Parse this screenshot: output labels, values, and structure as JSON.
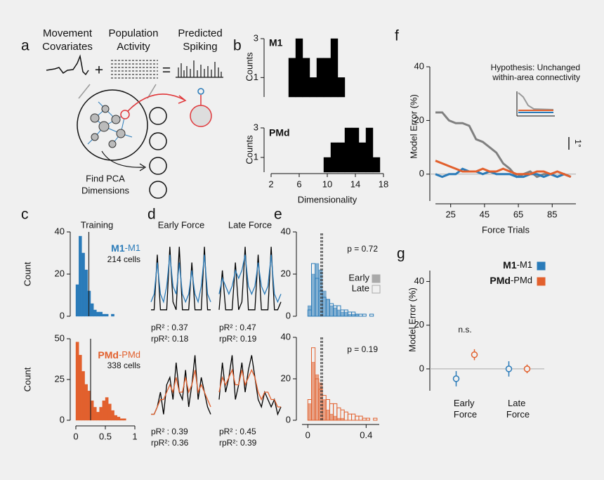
{
  "figure": {
    "letters": [
      "a",
      "b",
      "c",
      "d",
      "e",
      "f",
      "g"
    ],
    "a": {
      "headers": [
        [
          "Movement",
          "Covariates"
        ],
        [
          "Population",
          "Activity"
        ],
        [
          "Predicted",
          "Spiking"
        ]
      ],
      "plus": "+",
      "equals": "=",
      "caption": [
        "Find PCA",
        "Dimensions"
      ]
    },
    "f_inset": [
      "Hypothesis: Unchanged",
      "within-area connectivity"
    ],
    "f_scale": "1°"
  },
  "chart_data": [
    {
      "type": "histogram",
      "title": "M1",
      "ylabel": "Counts",
      "bins": [
        4.5,
        5.5,
        6.5,
        7.5,
        8.5,
        9.5,
        10.5,
        11.5,
        12.5
      ],
      "values": [
        2,
        3,
        2,
        1,
        2,
        2,
        3,
        1
      ],
      "color": "#000000",
      "xlim": [
        2,
        18
      ],
      "ylim": [
        0,
        3
      ],
      "yticks": [
        1,
        3
      ]
    },
    {
      "type": "histogram",
      "title": "PMd",
      "ylabel": "Counts",
      "xlabel": "Dimensionality",
      "bins": [
        9.5,
        10.5,
        11.5,
        12.5,
        13.5,
        14.5,
        15.5,
        16.5,
        17.5
      ],
      "values": [
        1,
        2,
        2,
        3,
        3,
        2,
        3,
        1
      ],
      "color": "#000000",
      "xlim": [
        2,
        18
      ],
      "ylim": [
        0,
        3
      ],
      "yticks": [
        1,
        3
      ],
      "xticks": [
        2,
        6,
        10,
        14,
        18
      ]
    },
    {
      "type": "histogram",
      "title": "Training",
      "ylabel": "Count",
      "name_parts": [
        "M1",
        "-M1"
      ],
      "subtitle": "214 cells",
      "bins": [
        0,
        0.05,
        0.1,
        0.15,
        0.2,
        0.25,
        0.3,
        0.35,
        0.4,
        0.45,
        0.5,
        0.55,
        0.6,
        0.65,
        0.7,
        0.75,
        0.8,
        0.85,
        0.9,
        0.95,
        1
      ],
      "values": [
        15,
        38,
        30,
        22,
        12,
        6,
        3,
        2,
        2,
        1,
        1,
        0,
        1,
        0,
        0,
        0,
        0,
        0,
        0,
        0
      ],
      "color": "#2a7bb9",
      "xlim": [
        0,
        1
      ],
      "ylim": [
        0,
        40
      ],
      "yticks": [
        0,
        20,
        40
      ],
      "vlines": [
        0.22
      ]
    },
    {
      "type": "histogram",
      "ylabel": "Count",
      "name_parts": [
        "PMd",
        "-PMd"
      ],
      "subtitle": "338 cells",
      "bins": [
        0,
        0.05,
        0.1,
        0.15,
        0.2,
        0.25,
        0.3,
        0.35,
        0.4,
        0.45,
        0.5,
        0.55,
        0.6,
        0.65,
        0.7,
        0.75,
        0.8,
        0.85,
        0.9,
        0.95,
        1
      ],
      "values": [
        48,
        40,
        30,
        22,
        18,
        12,
        8,
        5,
        8,
        12,
        14,
        10,
        6,
        3,
        2,
        1,
        1,
        0,
        0,
        0
      ],
      "color": "#e2602d",
      "xlim": [
        0,
        1
      ],
      "ylim": [
        0,
        50
      ],
      "yticks": [
        0,
        25,
        50
      ],
      "xticks": [
        0,
        0.5,
        1
      ],
      "vlines": [
        0.25
      ]
    },
    {
      "type": "trace",
      "title": "Early Force",
      "annotations": [
        "pR² : 0.37",
        "rpR²: 0.18"
      ],
      "ylim": [
        0,
        1
      ],
      "series": [
        {
          "color": "#000000",
          "values": [
            0.1,
            0.1,
            0.8,
            0.1,
            0.1,
            0.1,
            0.9,
            0.2,
            0.1,
            0.9,
            0.1,
            0.1,
            0.1,
            0.7,
            0.1,
            0.1,
            0.1,
            0.9,
            0.1,
            0.1
          ]
        },
        {
          "color": "#2a7bb9",
          "values": [
            0.2,
            0.3,
            0.7,
            0.3,
            0.2,
            0.4,
            0.8,
            0.4,
            0.3,
            0.7,
            0.3,
            0.2,
            0.3,
            0.6,
            0.3,
            0.2,
            0.4,
            0.8,
            0.3,
            0.2
          ]
        }
      ]
    },
    {
      "type": "trace",
      "title": "Late Force",
      "annotations": [
        "pR² : 0.47",
        "rpR²: 0.19"
      ],
      "ylim": [
        0,
        1
      ],
      "series": [
        {
          "color": "#000000",
          "values": [
            0.1,
            0.6,
            0.1,
            0.1,
            0.1,
            0.7,
            0.1,
            0.2,
            0.9,
            0.1,
            0.1,
            0.1,
            0.8,
            0.1,
            0.1,
            0.1,
            0.9,
            0.1,
            0.1,
            0.2
          ]
        },
        {
          "color": "#2a7bb9",
          "values": [
            0.3,
            0.5,
            0.4,
            0.3,
            0.4,
            0.6,
            0.5,
            0.6,
            0.8,
            0.4,
            0.3,
            0.4,
            0.7,
            0.4,
            0.3,
            0.4,
            0.8,
            0.3,
            0.2,
            0.3
          ]
        }
      ]
    },
    {
      "type": "trace",
      "annotations": [
        "pR² : 0.39",
        "rpR²: 0.36"
      ],
      "ylim": [
        0,
        1
      ],
      "series": [
        {
          "color": "#000000",
          "values": [
            0.1,
            0.1,
            0.2,
            0.4,
            0.1,
            0.5,
            0.6,
            0.3,
            0.8,
            0.4,
            0.3,
            0.7,
            0.2,
            0.5,
            0.9,
            0.3,
            0.6,
            0.4,
            0.2,
            0.1
          ]
        },
        {
          "color": "#e2602d",
          "values": [
            0.1,
            0.1,
            0.2,
            0.3,
            0.3,
            0.4,
            0.5,
            0.4,
            0.6,
            0.4,
            0.4,
            0.6,
            0.4,
            0.5,
            0.7,
            0.4,
            0.5,
            0.4,
            0.3,
            0.2
          ]
        }
      ]
    },
    {
      "type": "trace",
      "annotations": [
        "pR² : 0.45",
        "rpR²: 0.39"
      ],
      "ylim": [
        0,
        1
      ],
      "series": [
        {
          "color": "#000000",
          "values": [
            0.3,
            0.8,
            0.4,
            0.6,
            0.9,
            0.3,
            0.5,
            0.8,
            0.4,
            0.7,
            0.9,
            0.6,
            0.3,
            0.2,
            0.4,
            0.3,
            0.2,
            0.3,
            0.1,
            0.2
          ]
        },
        {
          "color": "#e2602d",
          "values": [
            0.4,
            0.6,
            0.5,
            0.6,
            0.7,
            0.5,
            0.5,
            0.7,
            0.5,
            0.6,
            0.7,
            0.6,
            0.4,
            0.3,
            0.4,
            0.4,
            0.3,
            0.3,
            0.2,
            0.2
          ]
        }
      ]
    },
    {
      "type": "histogram",
      "annotations": [
        "p = 0.72"
      ],
      "bins": [
        0,
        0.025,
        0.05,
        0.075,
        0.1,
        0.125,
        0.15,
        0.175,
        0.2,
        0.225,
        0.25,
        0.275,
        0.3,
        0.325,
        0.35,
        0.375,
        0.4,
        0.425,
        0.45,
        0.475,
        0.5
      ],
      "series": [
        {
          "name": "Early",
          "color": "#2a7bb9",
          "filled": true,
          "values": [
            5,
            20,
            25,
            22,
            12,
            8,
            5,
            4,
            3,
            2,
            2,
            1,
            1,
            1,
            0,
            0,
            0,
            0,
            0,
            0
          ]
        },
        {
          "name": "Late",
          "color": "#2a7bb9",
          "filled": false,
          "values": [
            3,
            25,
            18,
            12,
            9,
            8,
            6,
            5,
            5,
            3,
            3,
            2,
            2,
            1,
            1,
            1,
            0,
            1,
            0,
            0
          ]
        }
      ],
      "xlim": [
        -0.04,
        0.49
      ],
      "ylim": [
        0,
        40
      ],
      "yticks": [
        0,
        20,
        40
      ],
      "vlines": [
        0.09,
        0.1
      ],
      "vline_dash": true,
      "legend": "upper right"
    },
    {
      "type": "histogram",
      "annotations": [
        "p = 0.19"
      ],
      "bins": [
        0,
        0.025,
        0.05,
        0.075,
        0.1,
        0.125,
        0.15,
        0.175,
        0.2,
        0.225,
        0.25,
        0.275,
        0.3,
        0.325,
        0.35,
        0.375,
        0.4,
        0.425,
        0.45,
        0.475,
        0.5
      ],
      "series": [
        {
          "color": "#e2602d",
          "filled": true,
          "values": [
            8,
            28,
            22,
            18,
            10,
            5,
            3,
            2,
            1,
            1,
            0,
            0,
            0,
            0,
            0,
            0,
            0,
            0,
            0,
            0
          ]
        },
        {
          "color": "#e2602d",
          "filled": false,
          "values": [
            10,
            35,
            20,
            15,
            12,
            10,
            8,
            8,
            6,
            5,
            4,
            3,
            3,
            2,
            2,
            1,
            1,
            0,
            1,
            0
          ]
        }
      ],
      "xlim": [
        -0.04,
        0.49
      ],
      "ylim": [
        0,
        40
      ],
      "yticks": [
        0,
        20,
        40
      ],
      "xticks": [
        0,
        0.4
      ],
      "vlines": [
        0.09,
        0.1
      ],
      "vline_dash": true
    },
    {
      "type": "line",
      "xlabel": "Force Trials",
      "ylabel": "Model Error (%)",
      "x": [
        16,
        20,
        24,
        28,
        32,
        36,
        40,
        44,
        48,
        52,
        56,
        60,
        64,
        68,
        72,
        76,
        80,
        84,
        88,
        92,
        96
      ],
      "series": [
        {
          "color": "#808080",
          "values": [
            23,
            23,
            20,
            19,
            19,
            18,
            13,
            12,
            10,
            8,
            4,
            2,
            -1,
            0,
            1,
            -1,
            0,
            0,
            -1,
            0,
            -1
          ]
        },
        {
          "color": "#2a7bb9",
          "values": [
            0,
            -1,
            0,
            0,
            2,
            1,
            1,
            0,
            1,
            0,
            0,
            0,
            -1,
            -1,
            0,
            0,
            -1,
            0,
            -1,
            0,
            -1
          ]
        },
        {
          "color": "#e2602d",
          "values": [
            5,
            4,
            3,
            2,
            1,
            1,
            1,
            2,
            1,
            1,
            2,
            1,
            0,
            0,
            0,
            1,
            1,
            0,
            1,
            0,
            -1
          ]
        }
      ],
      "xlim": [
        16,
        99
      ],
      "ylim": [
        -10,
        40
      ],
      "xticks": [
        25,
        45,
        65,
        85
      ],
      "yticks": [
        0,
        20,
        40
      ],
      "hline": 0
    },
    {
      "type": "errorbar",
      "ylabel": "Model Error (%)",
      "categories": [
        "Early Force",
        "Late Force"
      ],
      "annotations": [
        "n.s."
      ],
      "series": [
        {
          "name_parts": [
            "M1",
            "-M1"
          ],
          "color": "#2a7bb9",
          "values": [
            -4.5,
            0
          ],
          "errors": [
            3.5,
            3.5
          ]
        },
        {
          "name_parts": [
            "PMd",
            "-PMd"
          ],
          "color": "#e2602d",
          "values": [
            6.5,
            0
          ],
          "errors": [
            2.5,
            2
          ]
        }
      ],
      "ylim": [
        -10,
        45
      ],
      "yticks": [
        0,
        20,
        40
      ],
      "hline": 0,
      "legend": "upper right"
    }
  ]
}
